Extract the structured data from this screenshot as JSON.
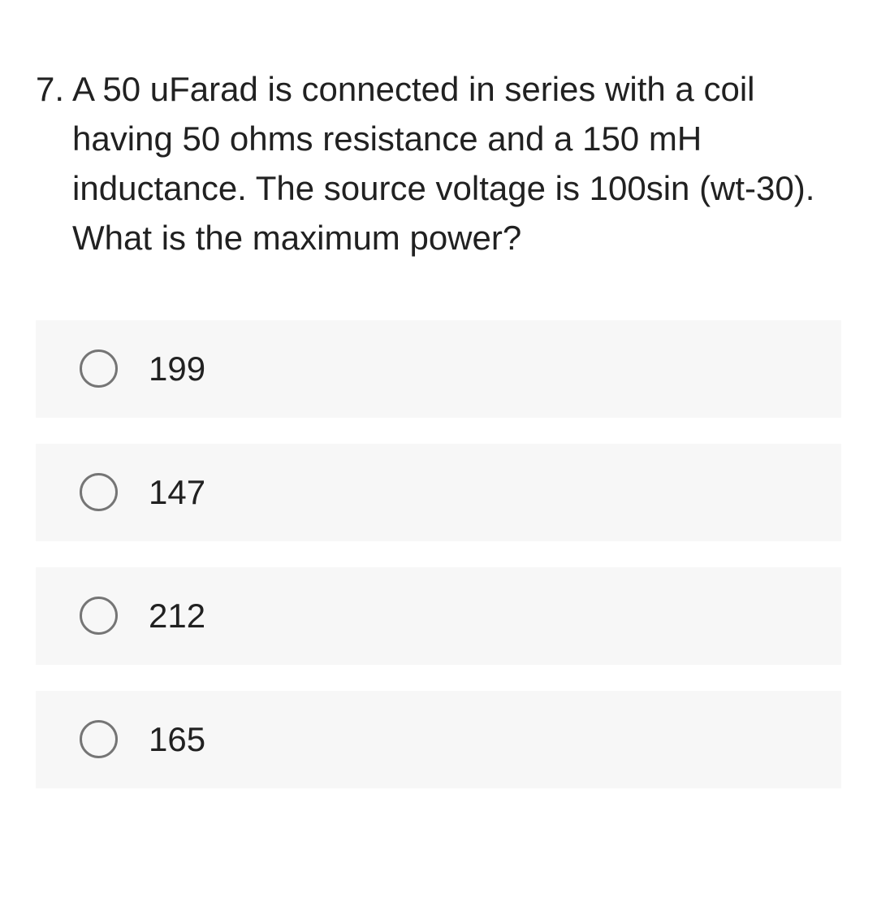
{
  "question": {
    "number": "7.",
    "text": "A 50 uFarad is connected in series with a coil having 50 ohms resistance and a 150 mH inductance. The source voltage is 100sin (wt-30). What is the maximum power?"
  },
  "options": [
    {
      "label": "199"
    },
    {
      "label": "147"
    },
    {
      "label": "212"
    },
    {
      "label": "165"
    }
  ],
  "colors": {
    "background": "#ffffff",
    "option_background": "#f7f7f7",
    "text": "#212121",
    "radio_border": "#757575"
  },
  "typography": {
    "question_fontsize": 42,
    "option_fontsize": 42,
    "line_height": 1.45
  }
}
